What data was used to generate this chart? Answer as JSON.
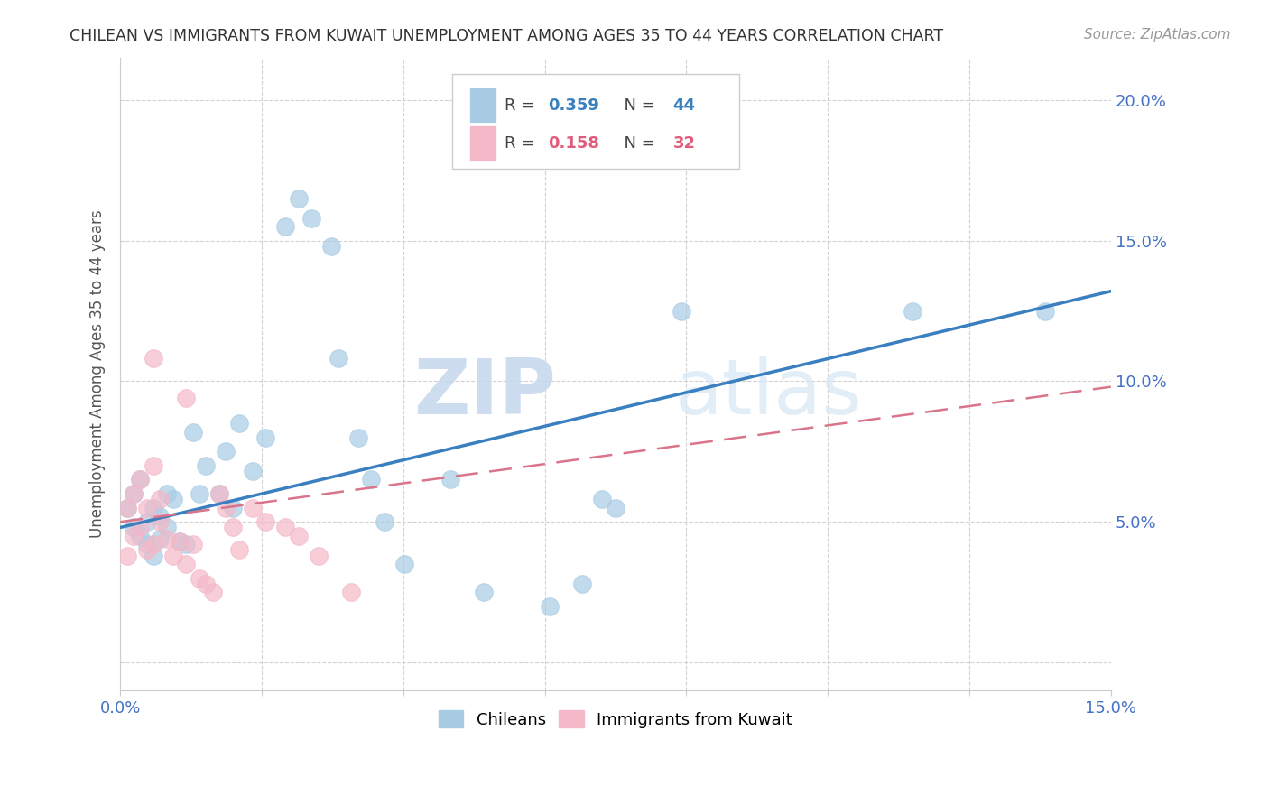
{
  "title": "CHILEAN VS IMMIGRANTS FROM KUWAIT UNEMPLOYMENT AMONG AGES 35 TO 44 YEARS CORRELATION CHART",
  "source": "Source: ZipAtlas.com",
  "ylabel": "Unemployment Among Ages 35 to 44 years",
  "xmin": 0.0,
  "xmax": 0.15,
  "ymin": -0.01,
  "ymax": 0.215,
  "chilean_R": 0.359,
  "chilean_N": 44,
  "kuwait_R": 0.158,
  "kuwait_N": 32,
  "blue_color": "#a8cce4",
  "pink_color": "#f4b8c8",
  "blue_line_color": "#3a7fbf",
  "pink_line_color": "#d9748a",
  "blue_line_start_y": 0.048,
  "blue_line_end_y": 0.132,
  "pink_line_start_y": 0.05,
  "pink_line_end_y": 0.098,
  "chileans_x": [
    0.001,
    0.002,
    0.002,
    0.003,
    0.003,
    0.004,
    0.004,
    0.005,
    0.005,
    0.006,
    0.006,
    0.007,
    0.007,
    0.008,
    0.009,
    0.01,
    0.011,
    0.012,
    0.013,
    0.015,
    0.016,
    0.017,
    0.018,
    0.02,
    0.022,
    0.025,
    0.027,
    0.029,
    0.032,
    0.033,
    0.036,
    0.038,
    0.04,
    0.043,
    0.05,
    0.055,
    0.065,
    0.07,
    0.073,
    0.075,
    0.085,
    0.12,
    0.14,
    0.068
  ],
  "chileans_y": [
    0.055,
    0.048,
    0.06,
    0.045,
    0.065,
    0.05,
    0.042,
    0.055,
    0.038,
    0.052,
    0.044,
    0.06,
    0.048,
    0.058,
    0.043,
    0.042,
    0.082,
    0.06,
    0.07,
    0.06,
    0.075,
    0.055,
    0.085,
    0.068,
    0.08,
    0.155,
    0.165,
    0.158,
    0.148,
    0.108,
    0.08,
    0.065,
    0.05,
    0.035,
    0.065,
    0.025,
    0.02,
    0.028,
    0.058,
    0.055,
    0.125,
    0.125,
    0.125,
    0.185
  ],
  "kuwait_x": [
    0.001,
    0.001,
    0.002,
    0.002,
    0.003,
    0.003,
    0.004,
    0.004,
    0.005,
    0.005,
    0.006,
    0.006,
    0.007,
    0.008,
    0.009,
    0.01,
    0.011,
    0.012,
    0.013,
    0.014,
    0.015,
    0.016,
    0.017,
    0.018,
    0.02,
    0.022,
    0.025,
    0.027,
    0.03,
    0.035,
    0.005,
    0.01
  ],
  "kuwait_y": [
    0.055,
    0.038,
    0.045,
    0.06,
    0.048,
    0.065,
    0.04,
    0.055,
    0.07,
    0.042,
    0.05,
    0.058,
    0.044,
    0.038,
    0.043,
    0.035,
    0.042,
    0.03,
    0.028,
    0.025,
    0.06,
    0.055,
    0.048,
    0.04,
    0.055,
    0.05,
    0.048,
    0.045,
    0.038,
    0.025,
    0.108,
    0.094
  ],
  "watermark_zip": "ZIP",
  "watermark_atlas": "atlas",
  "background_color": "#ffffff",
  "grid_color": "#cccccc",
  "ytick_vals": [
    0.0,
    0.05,
    0.1,
    0.15,
    0.2
  ],
  "ytick_labels": [
    "",
    "5.0%",
    "10.0%",
    "15.0%",
    "20.0%"
  ],
  "xtick_vals": [
    0.0,
    0.02143,
    0.04286,
    0.06429,
    0.08571,
    0.10714,
    0.12857,
    0.15
  ],
  "xtick_edge_labels": [
    "0.0%",
    "15.0%"
  ],
  "tick_color": "#4472c4",
  "title_fontsize": 12.5,
  "source_fontsize": 11,
  "axis_label_fontsize": 12,
  "tick_fontsize": 13
}
